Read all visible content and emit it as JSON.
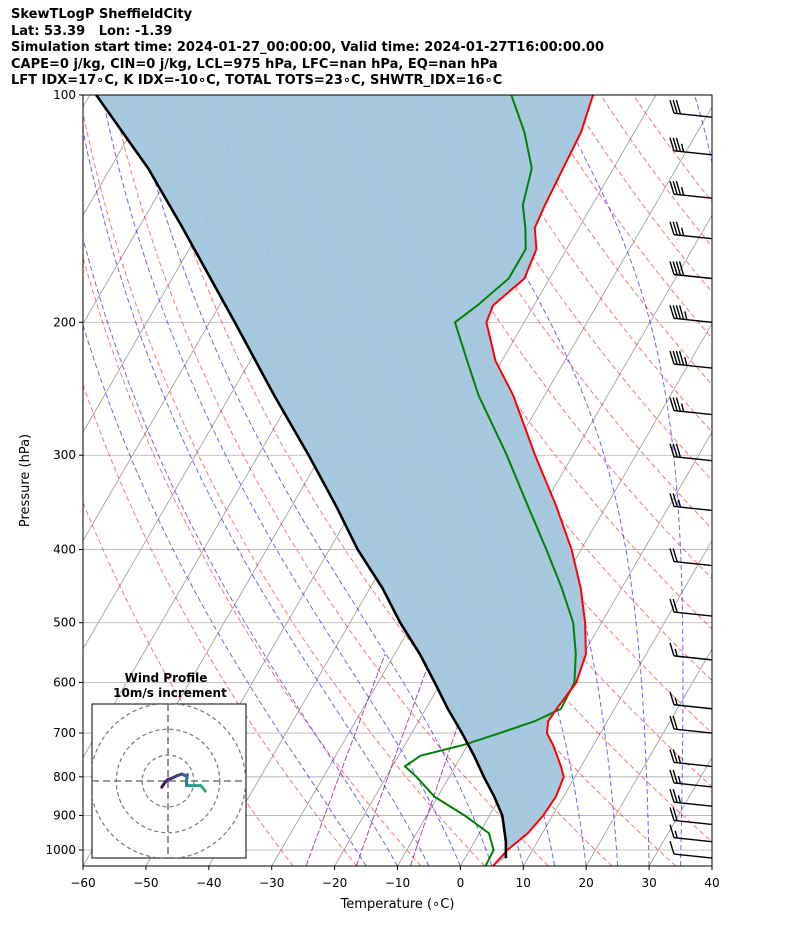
{
  "header": {
    "line1": "SkewTLogP SheffieldCity",
    "line2": "Lat: 53.39   Lon: -1.39",
    "line3": "Simulation start time: 2024-01-27_00:00:00, Valid time: 2024-01-27T16:00:00.00",
    "line4": "CAPE=0 j/kg, CIN=0 j/kg, LCL=975 hPa, LFC=nan hPa, EQ=nan hPa",
    "line5": "LFT IDX=17∘C, K IDX=-10∘C, TOTAL TOTS=23∘C, SHWTR_IDX=16∘C"
  },
  "chart_data": {
    "type": "line",
    "subtype": "skew-T log-p diagram",
    "xlabel": "Temperature (∘C)",
    "ylabel": "Pressure (hPa)",
    "xlim": [
      -60,
      40
    ],
    "ylim": [
      1050,
      100
    ],
    "y_scale": "log",
    "x_ticks": [
      "−60",
      "−50",
      "−40",
      "−30",
      "−20",
      "−10",
      "0",
      "10",
      "20",
      "30",
      "40"
    ],
    "y_ticks": [
      "100",
      "200",
      "300",
      "400",
      "500",
      "600",
      "700",
      "800",
      "900",
      "1000"
    ],
    "grid": true,
    "colors": {
      "temperature": "#ff0000",
      "dewpoint": "#008000",
      "parcel": "#000000",
      "cape_fill": "#a2c6de",
      "dry_adiabat": "#ff0000",
      "moist_adiabat": "#0000ff",
      "mixing_ratio": "#800080",
      "isotherm": "#999999"
    },
    "series": [
      {
        "p": 1050,
        "T": 5.2,
        "Td": 4.0
      },
      {
        "p": 1000,
        "T": 6.0,
        "Td": 3.8
      },
      {
        "p": 950,
        "T": 7.7,
        "Td": 1.5
      },
      {
        "p": 900,
        "T": 8.5,
        "Td": -4.0
      },
      {
        "p": 850,
        "T": 8.8,
        "Td": -10.5
      },
      {
        "p": 800,
        "T": 8.2,
        "Td": -15.2
      },
      {
        "p": 775,
        "T": 6.8,
        "Td": -18.0
      },
      {
        "p": 750,
        "T": 5.2,
        "Td": -16.5
      },
      {
        "p": 725,
        "T": 3.5,
        "Td": -10.5
      },
      {
        "p": 700,
        "T": 1.5,
        "Td": -6.0
      },
      {
        "p": 675,
        "T": 0.6,
        "Td": -1.5
      },
      {
        "p": 650,
        "T": 0.8,
        "Td": 1.5
      },
      {
        "p": 600,
        "T": 1.5,
        "Td": 1.2
      },
      {
        "p": 550,
        "T": 0.4,
        "Td": -1.2
      },
      {
        "p": 500,
        "T": -2.6,
        "Td": -4.5
      },
      {
        "p": 450,
        "T": -6.5,
        "Td": -9.5
      },
      {
        "p": 400,
        "T": -11.5,
        "Td": -15.5
      },
      {
        "p": 350,
        "T": -18.0,
        "Td": -22.5
      },
      {
        "p": 300,
        "T": -26.0,
        "Td": -30.5
      },
      {
        "p": 250,
        "T": -35.0,
        "Td": -40.5
      },
      {
        "p": 225,
        "T": -41.0,
        "Td": -45.5
      },
      {
        "p": 200,
        "T": -46.0,
        "Td": -51.0
      },
      {
        "p": 190,
        "T": -46.5,
        "Td": -49.0
      },
      {
        "p": 175,
        "T": -44.0,
        "Td": -46.5
      },
      {
        "p": 160,
        "T": -44.8,
        "Td": -46.5
      },
      {
        "p": 150,
        "T": -47.0,
        "Td": -48.5
      },
      {
        "p": 140,
        "T": -47.5,
        "Td": -51.0
      },
      {
        "p": 125,
        "T": -48.0,
        "Td": -53.0
      },
      {
        "p": 112,
        "T": -48.5,
        "Td": -57.5
      },
      {
        "p": 100,
        "T": -50.0,
        "Td": -63.0
      }
    ],
    "parcel": [
      {
        "p": 1025,
        "T": 6.5
      },
      {
        "p": 975,
        "T": 5.0
      },
      {
        "p": 900,
        "T": 2.0
      },
      {
        "p": 850,
        "T": -1.0
      },
      {
        "p": 800,
        "T": -4.5
      },
      {
        "p": 750,
        "T": -8.0
      },
      {
        "p": 700,
        "T": -12.0
      },
      {
        "p": 650,
        "T": -16.5
      },
      {
        "p": 600,
        "T": -21.0
      },
      {
        "p": 550,
        "T": -26.0
      },
      {
        "p": 500,
        "T": -32.0
      },
      {
        "p": 450,
        "T": -38.0
      },
      {
        "p": 400,
        "T": -45.5
      },
      {
        "p": 350,
        "T": -53.0
      },
      {
        "p": 300,
        "T": -62.0
      },
      {
        "p": 250,
        "T": -73.0
      },
      {
        "p": 200,
        "T": -86.0
      },
      {
        "p": 150,
        "T": -103.0
      },
      {
        "p": 125,
        "T": -114.0
      },
      {
        "p": 100,
        "T": -129.0
      }
    ],
    "wind_barbs": [
      {
        "p": 1025,
        "speed_kt": 10
      },
      {
        "p": 975,
        "speed_kt": 15
      },
      {
        "p": 925,
        "speed_kt": 20
      },
      {
        "p": 875,
        "speed_kt": 25
      },
      {
        "p": 825,
        "speed_kt": 25
      },
      {
        "p": 775,
        "speed_kt": 25
      },
      {
        "p": 700,
        "speed_kt": 20
      },
      {
        "p": 650,
        "speed_kt": 15
      },
      {
        "p": 560,
        "speed_kt": 15
      },
      {
        "p": 490,
        "speed_kt": 20
      },
      {
        "p": 420,
        "speed_kt": 20
      },
      {
        "p": 355,
        "speed_kt": 25
      },
      {
        "p": 305,
        "speed_kt": 30
      },
      {
        "p": 265,
        "speed_kt": 35
      },
      {
        "p": 230,
        "speed_kt": 45
      },
      {
        "p": 200,
        "speed_kt": 45
      },
      {
        "p": 175,
        "speed_kt": 40
      },
      {
        "p": 155,
        "speed_kt": 35
      },
      {
        "p": 137,
        "speed_kt": 35
      },
      {
        "p": 120,
        "speed_kt": 35
      },
      {
        "p": 107,
        "speed_kt": 30
      }
    ],
    "hodograph": {
      "title": "Wind Profile",
      "subtitle": "10m/s increment",
      "ring_count": 3,
      "range": [
        -25,
        25
      ],
      "trace": [
        {
          "u": -4,
          "v": -4,
          "c": "#3b1758"
        },
        {
          "u": -2,
          "v": -1,
          "c": "#4a1f6b"
        },
        {
          "u": 0,
          "v": 1,
          "c": "#462a7a"
        },
        {
          "u": 3,
          "v": 2,
          "c": "#43357e"
        },
        {
          "u": 6,
          "v": 3.5,
          "c": "#413f82"
        },
        {
          "u": 9,
          "v": 4.5,
          "c": "#3f4a87"
        },
        {
          "u": 10,
          "v": 4,
          "c": "#3a5d8b"
        },
        {
          "u": 11,
          "v": 3.5,
          "c": "#35678c"
        },
        {
          "u": 12.5,
          "v": 4,
          "c": "#2f728d"
        },
        {
          "u": 12,
          "v": 1,
          "c": "#2c7b8e"
        },
        {
          "u": 12,
          "v": -1.5,
          "c": "#29838e"
        },
        {
          "u": 12,
          "v": -3,
          "c": "#278d8d"
        },
        {
          "u": 14,
          "v": -3,
          "c": "#249a89"
        },
        {
          "u": 18,
          "v": -3,
          "c": "#22a785"
        },
        {
          "u": 21,
          "v": -3,
          "c": "#26ad81"
        },
        {
          "u": 22,
          "v": -4,
          "c": "#2ab07f"
        },
        {
          "u": 24,
          "v": -6.5,
          "c": "#30b47b"
        }
      ]
    }
  }
}
